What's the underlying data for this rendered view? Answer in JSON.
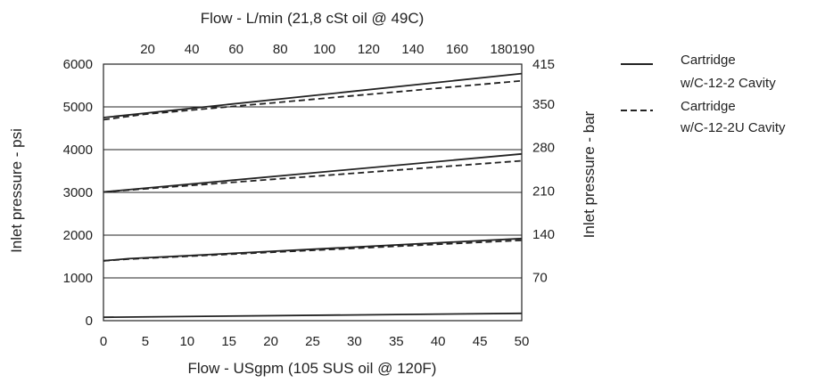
{
  "chart_data": {
    "type": "line",
    "top_axis": {
      "label": "Flow - L/min (21,8 cSt oil @ 49C)",
      "ticks": [
        20,
        40,
        60,
        80,
        100,
        120,
        140,
        160,
        180,
        190
      ],
      "range": [
        0,
        189.27
      ]
    },
    "bottom_axis": {
      "label": "Flow - USgpm (105 SUS oil @ 120F)",
      "ticks": [
        0,
        5,
        10,
        15,
        20,
        25,
        30,
        35,
        40,
        45,
        50
      ],
      "range": [
        0,
        50
      ]
    },
    "left_axis": {
      "label": "Inlet pressure - psi",
      "ticks": [
        0,
        1000,
        2000,
        3000,
        4000,
        5000,
        6000
      ],
      "range": [
        0,
        6000
      ]
    },
    "right_axis": {
      "label": "Inlet pressure - bar",
      "ticks": [
        70,
        140,
        210,
        280,
        350,
        415
      ],
      "range": [
        0,
        415
      ]
    },
    "grid": true,
    "legend_position": "top-right",
    "series": [
      {
        "name": "Cartridge w/C-12-2 Cavity",
        "style": "solid",
        "x": [
          0,
          50
        ],
        "y": [
          4750,
          5780
        ]
      },
      {
        "name": "Cartridge w/C-12-2U Cavity",
        "style": "dashed",
        "x": [
          0,
          5,
          50
        ],
        "y": [
          4700,
          4830,
          5610
        ]
      },
      {
        "name": "Cartridge w/C-12-2 Cavity",
        "style": "solid",
        "x": [
          0,
          50
        ],
        "y": [
          3010,
          3900
        ]
      },
      {
        "name": "Cartridge w/C-12-2U Cavity",
        "style": "dashed",
        "x": [
          0,
          50
        ],
        "y": [
          3010,
          3740
        ]
      },
      {
        "name": "Cartridge w/C-12-2 Cavity",
        "style": "solid",
        "x": [
          0,
          3,
          50
        ],
        "y": [
          1400,
          1450,
          1920
        ]
      },
      {
        "name": "Cartridge w/C-12-2U Cavity",
        "style": "dashed",
        "x": [
          0,
          3,
          50
        ],
        "y": [
          1400,
          1440,
          1880
        ]
      },
      {
        "name": "Cartridge w/C-12-2 Cavity",
        "style": "solid",
        "x": [
          0,
          50
        ],
        "y": [
          80,
          170
        ]
      }
    ],
    "legend": [
      {
        "style": "solid",
        "line1": "Cartridge",
        "line2": "w/C-12-2 Cavity"
      },
      {
        "style": "dashed",
        "line1": "Cartridge",
        "line2": "w/C-12-2U Cavity"
      }
    ]
  }
}
